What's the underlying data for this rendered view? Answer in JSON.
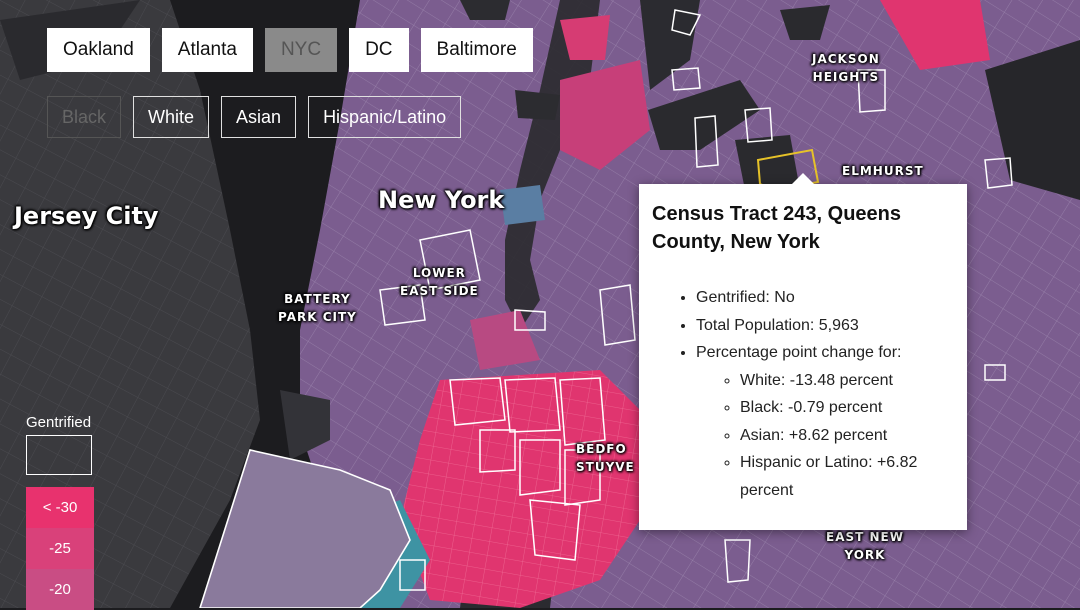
{
  "city_buttons": [
    {
      "label": "Oakland",
      "active": false
    },
    {
      "label": "Atlanta",
      "active": false
    },
    {
      "label": "NYC",
      "active": true
    },
    {
      "label": "DC",
      "active": false
    },
    {
      "label": "Baltimore",
      "active": false
    }
  ],
  "race_buttons": [
    {
      "label": "Black",
      "active": true
    },
    {
      "label": "White",
      "active": false
    },
    {
      "label": "Asian",
      "active": false
    },
    {
      "label": "Hispanic/Latino",
      "active": false
    }
  ],
  "map_labels": {
    "jersey_city": "Jersey City",
    "new_york": "New York",
    "jackson_heights": "JACKSON\nHEIGHTS",
    "elmhurst": "ELMHURST",
    "lower_east_side": "LOWER\nEAST SIDE",
    "battery_park_city": "BATTERY\nPARK CITY",
    "bedford_stuyvesant": "BEDFO\nSTUYVE",
    "east_new_york": "EAST NEW\nYORK"
  },
  "legend": {
    "title": "Gentrified",
    "steps": [
      {
        "label": "< -30",
        "color": "#e8326e"
      },
      {
        "label": "-25",
        "color": "#d9417a"
      },
      {
        "label": "-20",
        "color": "#c94d84"
      }
    ]
  },
  "popup": {
    "title": "Census Tract 243, Queens County, New York",
    "gentrified": "Gentrified: No",
    "total_population": "Total Population: 5,963",
    "change_header": "Percentage point change for:",
    "changes": [
      "White: -13.48 percent",
      "Black: -0.79 percent",
      "Asian: +8.62 percent",
      "Hispanic or Latino: +6.82 percent"
    ]
  },
  "colors": {
    "water": "#1c1c1f",
    "tract_base": "#7a5e8f",
    "tract_hot": "#e8326e",
    "tract_teal": "#3e93a3",
    "gentrified_outline": "#ffffff",
    "selected_outline": "#e6c229"
  }
}
